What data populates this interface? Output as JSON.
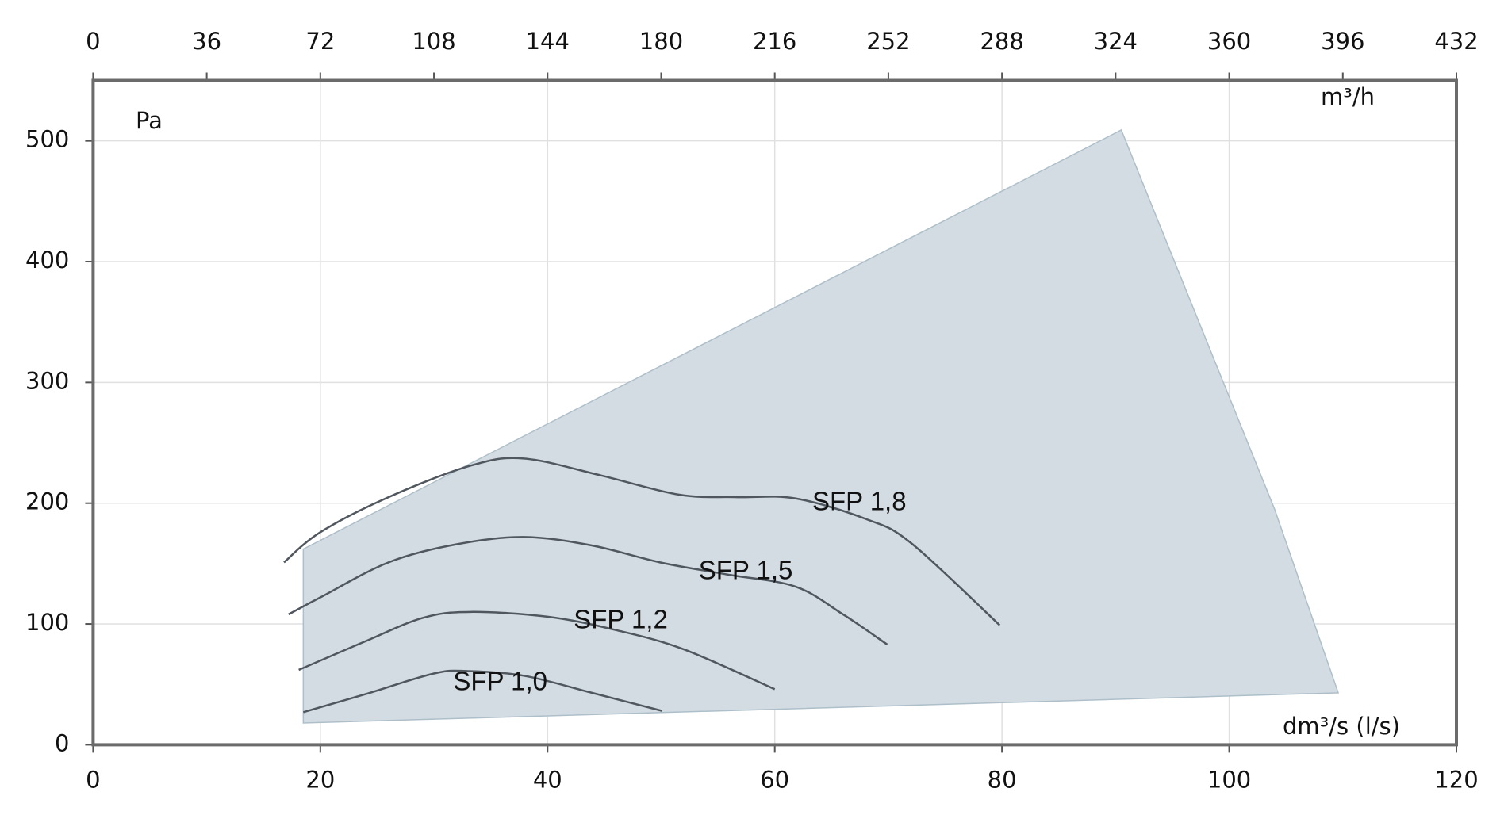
{
  "chart_data": {
    "type": "line",
    "x_label": "dm³/s (l/s)",
    "y_label": "Pa",
    "x2_label": "m³/h",
    "xlim": [
      0,
      120
    ],
    "xticks": [
      0,
      20,
      40,
      60,
      80,
      100,
      120
    ],
    "x2lim": [
      0,
      432
    ],
    "x2ticks": [
      0,
      36,
      72,
      108,
      144,
      180,
      216,
      252,
      288,
      324,
      360,
      396,
      432
    ],
    "ylim": [
      0,
      550
    ],
    "yticks": [
      0,
      100,
      200,
      300,
      400,
      500
    ],
    "grid": true,
    "envelope": {
      "color": "#d3dce2",
      "x": [
        18.5,
        18.5,
        90.5,
        104,
        109.6
      ],
      "y": [
        18,
        162,
        509,
        195,
        43
      ]
    },
    "series": [
      {
        "name": "SFP 1,8",
        "color": "#50575e",
        "x": [
          16.8,
          20,
          26,
          33.2,
          37.9,
          44.7,
          51.6,
          56.7,
          61.8,
          68,
          72,
          79.8
        ],
        "y": [
          151,
          176,
          205,
          231,
          237,
          223,
          207,
          205,
          204,
          187,
          167,
          99
        ]
      },
      {
        "name": "SFP 1,5",
        "color": "#50575e",
        "x": [
          17.2,
          20,
          26,
          32,
          37.9,
          43.9,
          49.9,
          55.8,
          61.8,
          66,
          69.9
        ],
        "y": [
          108,
          122,
          151,
          166,
          172,
          165,
          151,
          141,
          131,
          108,
          83
        ]
      },
      {
        "name": "SFP 1,2",
        "color": "#50575e",
        "x": [
          18.1,
          23.8,
          29,
          33.2,
          40,
          46,
          52,
          60
        ],
        "y": [
          62,
          85,
          105,
          110,
          106,
          95,
          79,
          46
        ]
      },
      {
        "name": "SFP 1,0",
        "color": "#50575e",
        "x": [
          18.5,
          24,
          30,
          33,
          38,
          43.9,
          50.1
        ],
        "y": [
          27,
          42,
          59,
          61,
          57,
          43,
          28
        ]
      }
    ]
  }
}
